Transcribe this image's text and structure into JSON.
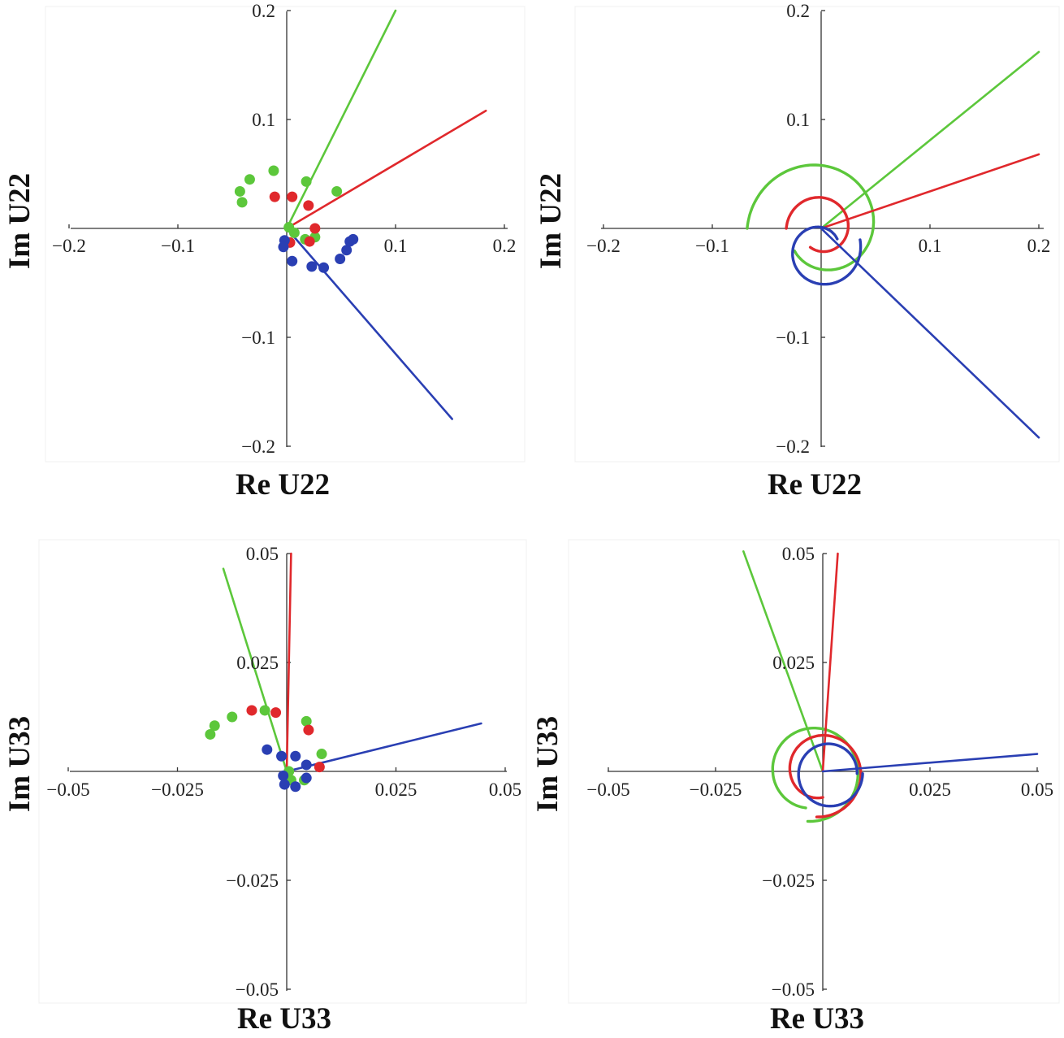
{
  "colors": {
    "red": "#e0282c",
    "green": "#5cc73b",
    "blue": "#2a3fb3",
    "axis": "#333333",
    "text": "#111111"
  },
  "chart_data": [
    {
      "type": "scatter",
      "panel": "top-left",
      "xlabel": "Re U22",
      "ylabel": "Im U22",
      "xlim": [
        -0.2,
        0.2
      ],
      "ylim": [
        -0.2,
        0.2
      ],
      "xticks": [
        {
          "value": -0.2,
          "label": "−0.2"
        },
        {
          "value": -0.1,
          "label": "−0.1"
        },
        {
          "value": 0.1,
          "label": "0.1"
        },
        {
          "value": 0.2,
          "label": "0.2"
        }
      ],
      "yticks": [
        {
          "value": 0.2,
          "label": "0.2"
        },
        {
          "value": 0.1,
          "label": "0.1"
        },
        {
          "value": -0.1,
          "label": "−0.1"
        },
        {
          "value": -0.2,
          "label": "−0.2"
        }
      ],
      "series": [
        {
          "color": "green",
          "line": [
            [
              0,
              0
            ],
            [
              0.1,
              0.2
            ]
          ],
          "points": [
            [
              -0.043,
              0.034
            ],
            [
              -0.041,
              0.024
            ],
            [
              -0.034,
              0.045
            ],
            [
              -0.012,
              0.053
            ],
            [
              0.018,
              0.043
            ],
            [
              0.046,
              0.034
            ],
            [
              0.026,
              -0.008
            ],
            [
              0.017,
              -0.01
            ],
            [
              0.007,
              -0.004
            ],
            [
              0.002,
              0.001
            ]
          ]
        },
        {
          "color": "red",
          "line": [
            [
              0,
              0
            ],
            [
              0.183,
              0.108
            ]
          ],
          "points": [
            [
              -0.011,
              0.029
            ],
            [
              0.005,
              0.029
            ],
            [
              0.02,
              0.021
            ],
            [
              0.026,
              0.0
            ],
            [
              0.021,
              -0.012
            ],
            [
              0.003,
              -0.013
            ]
          ]
        },
        {
          "color": "blue",
          "line": [
            [
              0,
              0
            ],
            [
              0.152,
              -0.175
            ]
          ],
          "points": [
            [
              -0.002,
              -0.011
            ],
            [
              -0.003,
              -0.017
            ],
            [
              0.005,
              -0.03
            ],
            [
              0.023,
              -0.035
            ],
            [
              0.034,
              -0.036
            ],
            [
              0.049,
              -0.028
            ],
            [
              0.055,
              -0.02
            ],
            [
              0.058,
              -0.012
            ],
            [
              0.061,
              -0.01
            ]
          ]
        }
      ]
    },
    {
      "type": "line",
      "panel": "top-right",
      "xlabel": "Re U22",
      "ylabel": "Im U22",
      "xlim": [
        -0.2,
        0.2
      ],
      "ylim": [
        -0.2,
        0.2
      ],
      "xticks": [
        {
          "value": -0.2,
          "label": "−0.2"
        },
        {
          "value": -0.1,
          "label": "−0.1"
        },
        {
          "value": 0.1,
          "label": "0.1"
        },
        {
          "value": 0.2,
          "label": "0.2"
        }
      ],
      "yticks": [
        {
          "value": 0.2,
          "label": "0.2"
        },
        {
          "value": 0.1,
          "label": "0.1"
        },
        {
          "value": -0.1,
          "label": "−0.1"
        },
        {
          "value": -0.2,
          "label": "−0.2"
        }
      ],
      "series": [
        {
          "color": "green",
          "line": [
            [
              0,
              0
            ],
            [
              0.2,
              0.162
            ]
          ],
          "spiral_center": [
            0.0,
            0.0
          ],
          "r_start": 0.068,
          "r_end": 0.032,
          "theta_start_deg": 180,
          "theta_sweep_deg": -320
        },
        {
          "color": "red",
          "line": [
            [
              0,
              0
            ],
            [
              0.2,
              0.068
            ]
          ],
          "spiral_center": [
            0.0,
            0.0
          ],
          "r_start": 0.032,
          "r_end": 0.02,
          "theta_start_deg": 180,
          "theta_sweep_deg": -300
        },
        {
          "color": "blue",
          "line": [
            [
              0,
              0
            ],
            [
              0.2,
              -0.192
            ]
          ],
          "spiral_center": [
            0.0,
            -0.02
          ],
          "r_start": 0.037,
          "r_end": 0.018,
          "theta_start_deg": 15,
          "theta_sweep_deg": -340
        }
      ]
    },
    {
      "type": "scatter",
      "panel": "bottom-left",
      "xlabel": "Re U33",
      "ylabel": "Im U33",
      "xlim": [
        -0.05,
        0.05
      ],
      "ylim": [
        -0.05,
        0.05
      ],
      "xticks": [
        {
          "value": -0.05,
          "label": "−0.05"
        },
        {
          "value": -0.025,
          "label": "−0.025"
        },
        {
          "value": 0.025,
          "label": "0.025"
        },
        {
          "value": 0.05,
          "label": "0.05"
        }
      ],
      "yticks": [
        {
          "value": 0.05,
          "label": "0.05"
        },
        {
          "value": 0.025,
          "label": "0.025"
        },
        {
          "value": -0.025,
          "label": "−0.025"
        },
        {
          "value": -0.05,
          "label": "−0.05"
        }
      ],
      "series": [
        {
          "color": "green",
          "line": [
            [
              0,
              0
            ],
            [
              -0.0145,
              0.0465
            ]
          ],
          "points": [
            [
              -0.0175,
              0.0085
            ],
            [
              -0.0165,
              0.0105
            ],
            [
              -0.0125,
              0.0125
            ],
            [
              -0.005,
              0.014
            ],
            [
              0.0045,
              0.0115
            ],
            [
              0.008,
              0.004
            ],
            [
              0.004,
              -0.002
            ],
            [
              0.001,
              -0.002
            ],
            [
              0.0005,
              0.0
            ]
          ]
        },
        {
          "color": "red",
          "line": [
            [
              0,
              0
            ],
            [
              0.001,
              0.05
            ]
          ],
          "points": [
            [
              -0.008,
              0.014
            ],
            [
              -0.0025,
              0.0135
            ],
            [
              0.005,
              0.0095
            ],
            [
              0.0075,
              0.001
            ]
          ]
        },
        {
          "color": "blue",
          "line": [
            [
              0,
              0
            ],
            [
              0.0445,
              0.011
            ]
          ],
          "points": [
            [
              -0.0045,
              0.005
            ],
            [
              -0.0012,
              0.0035
            ],
            [
              0.002,
              0.0035
            ],
            [
              0.0045,
              0.0015
            ],
            [
              0.0045,
              -0.0015
            ],
            [
              0.002,
              -0.0035
            ],
            [
              -0.0005,
              -0.003
            ],
            [
              -0.0008,
              -0.001
            ]
          ]
        }
      ]
    },
    {
      "type": "line",
      "panel": "bottom-right",
      "xlabel": "Re U33",
      "ylabel": "Im U33",
      "xlim": [
        -0.05,
        0.05
      ],
      "ylim": [
        -0.05,
        0.05
      ],
      "xticks": [
        {
          "value": -0.05,
          "label": "−0.05"
        },
        {
          "value": -0.025,
          "label": "−0.025"
        },
        {
          "value": 0.025,
          "label": "0.025"
        },
        {
          "value": 0.05,
          "label": "0.05"
        }
      ],
      "yticks": [
        {
          "value": 0.05,
          "label": "0.05"
        },
        {
          "value": 0.025,
          "label": "0.025"
        },
        {
          "value": -0.025,
          "label": "−0.025"
        },
        {
          "value": -0.05,
          "label": "−0.05"
        }
      ],
      "series": [
        {
          "color": "green",
          "line": [
            [
              0,
              0
            ],
            [
              -0.0185,
              0.0505
            ]
          ],
          "spiral_center": [
            -0.0025,
            0.0
          ],
          "r_start": 0.0085,
          "r_end": 0.0115,
          "theta_start_deg": 260,
          "theta_sweep_deg": -355
        },
        {
          "color": "red",
          "line": [
            [
              0,
              0
            ],
            [
              0.0035,
              0.05
            ]
          ],
          "spiral_center": [
            -0.0005,
            0.0
          ],
          "r_start": 0.006,
          "r_end": 0.0105,
          "theta_start_deg": 275,
          "theta_sweep_deg": -370
        },
        {
          "color": "blue",
          "line": [
            [
              0,
              0
            ],
            [
              0.05,
              0.004
            ]
          ],
          "spiral_center": [
            0.0015,
            -0.0005
          ],
          "r_start": 0.0065,
          "r_end": 0.0078,
          "theta_start_deg": 0,
          "theta_sweep_deg": 360
        }
      ]
    }
  ]
}
